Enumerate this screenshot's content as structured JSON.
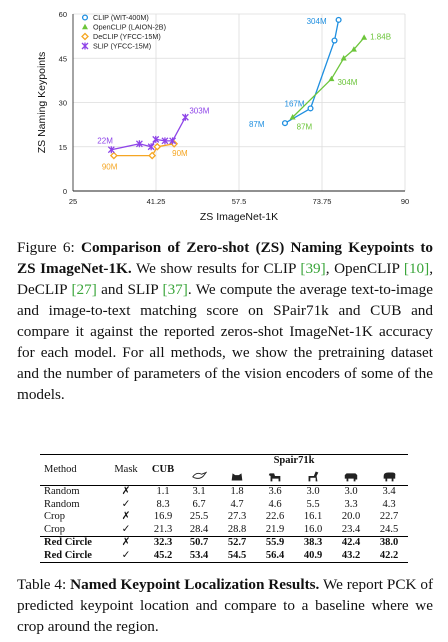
{
  "chart_data": {
    "type": "scatter",
    "xlabel": "ZS ImageNet-1K",
    "ylabel": "ZS Naming Keypoints",
    "xlim": [
      25,
      90
    ],
    "ylim": [
      0,
      60
    ],
    "xticks": [
      "25",
      "41.25",
      "57.5",
      "73.75",
      "90"
    ],
    "yticks": [
      "0",
      "15",
      "30",
      "45",
      "60"
    ],
    "legend_position": "top-left",
    "series": [
      {
        "name": "CLIP (WIT-400M)",
        "color": "#1f8fe0",
        "marker": "circle",
        "points": [
          [
            66.5,
            23
          ],
          [
            71.5,
            28
          ],
          [
            76.2,
            51
          ],
          [
            77.0,
            58
          ]
        ],
        "labels": [
          {
            "i": 0,
            "text": "87M"
          },
          {
            "i": 1,
            "text": "167M"
          },
          {
            "i": 3,
            "text": "304M"
          }
        ]
      },
      {
        "name": "OpenCLIP (LAION-2B)",
        "color": "#6cc53a",
        "marker": "triangle",
        "points": [
          [
            68.0,
            25
          ],
          [
            75.6,
            38
          ],
          [
            78.0,
            45
          ],
          [
            80.0,
            48
          ],
          [
            82.0,
            52
          ]
        ],
        "labels": [
          {
            "i": 0,
            "text": "87M"
          },
          {
            "i": 1,
            "text": "304M"
          },
          {
            "i": 4,
            "text": "1.84B"
          }
        ]
      },
      {
        "name": "DeCLIP (YFCC-15M)",
        "color": "#f5a623",
        "marker": "diamond",
        "points": [
          [
            33.0,
            12
          ],
          [
            40.5,
            12
          ],
          [
            41.5,
            15
          ],
          [
            44.8,
            16
          ]
        ],
        "labels": [
          {
            "i": 0,
            "text": "90M"
          },
          {
            "i": 3,
            "text": "90M"
          }
        ]
      },
      {
        "name": "SLIP (YFCC-15M)",
        "color": "#8e44e8",
        "marker": "cross",
        "points": [
          [
            32.5,
            14
          ],
          [
            38.0,
            16
          ],
          [
            40.3,
            15
          ],
          [
            41.2,
            17.5
          ],
          [
            43.0,
            17
          ],
          [
            44.5,
            17
          ],
          [
            47.0,
            25
          ]
        ],
        "labels": [
          {
            "i": 0,
            "text": "22M"
          },
          {
            "i": 6,
            "text": "303M"
          }
        ]
      }
    ]
  },
  "figure_caption": {
    "label": "Figure 6: ",
    "title": "Comparison of Zero-shot (ZS) Naming Keypoints to ZS ImageNet-1K.",
    "body_1": " We show results for CLIP ",
    "cite_1": "[39]",
    "body_2": ", OpenCLIP ",
    "cite_2": "[10]",
    "body_3": ", DeCLIP ",
    "cite_3": "[27]",
    "body_4": " and SLIP ",
    "cite_4": "[37]",
    "body_5": ". We compute the average text-to-image and image-to-text matching score on SPair71k and CUB and compare it against the reported zeros-shot ImageNet-1K accuracy for each model. For all methods, we show the pretraining dataset and the number of parameters of the vision encoders of some of the models."
  },
  "table": {
    "headers": {
      "method": "Method",
      "mask": "Mask",
      "cub": "CUB",
      "spair": "Spair71k"
    },
    "category_icons": [
      "bird-icon",
      "cat-icon",
      "dog-icon",
      "horse-icon",
      "cow-icon",
      "sheep-icon"
    ],
    "rows": [
      {
        "method": "Random",
        "mask": "✗",
        "values": [
          "1.1",
          "3.1",
          "1.8",
          "3.6",
          "3.0",
          "3.0",
          "3.4"
        ],
        "bold": false
      },
      {
        "method": "Random",
        "mask": "✓",
        "values": [
          "8.3",
          "6.7",
          "4.7",
          "4.6",
          "5.5",
          "3.3",
          "4.3"
        ],
        "bold": false
      },
      {
        "method": "Crop",
        "mask": "✗",
        "values": [
          "16.9",
          "25.5",
          "27.3",
          "22.6",
          "16.1",
          "20.0",
          "22.7"
        ],
        "bold": false
      },
      {
        "method": "Crop",
        "mask": "✓",
        "values": [
          "21.3",
          "28.4",
          "28.8",
          "21.9",
          "16.0",
          "23.4",
          "24.5"
        ],
        "bold": false
      },
      {
        "method": "Red Circle",
        "mask": "✗",
        "values": [
          "32.3",
          "50.7",
          "52.7",
          "55.9",
          "38.3",
          "42.4",
          "38.0"
        ],
        "bold": true
      },
      {
        "method": "Red Circle",
        "mask": "✓",
        "values": [
          "45.2",
          "53.4",
          "54.5",
          "56.4",
          "40.9",
          "43.2",
          "42.2"
        ],
        "bold": true
      }
    ]
  },
  "table_caption": {
    "label": "Table 4: ",
    "title": "Named Keypoint Localization Results.",
    "body": " We report PCK of predicted keypoint location and compare to a baseline where we crop around the region."
  }
}
